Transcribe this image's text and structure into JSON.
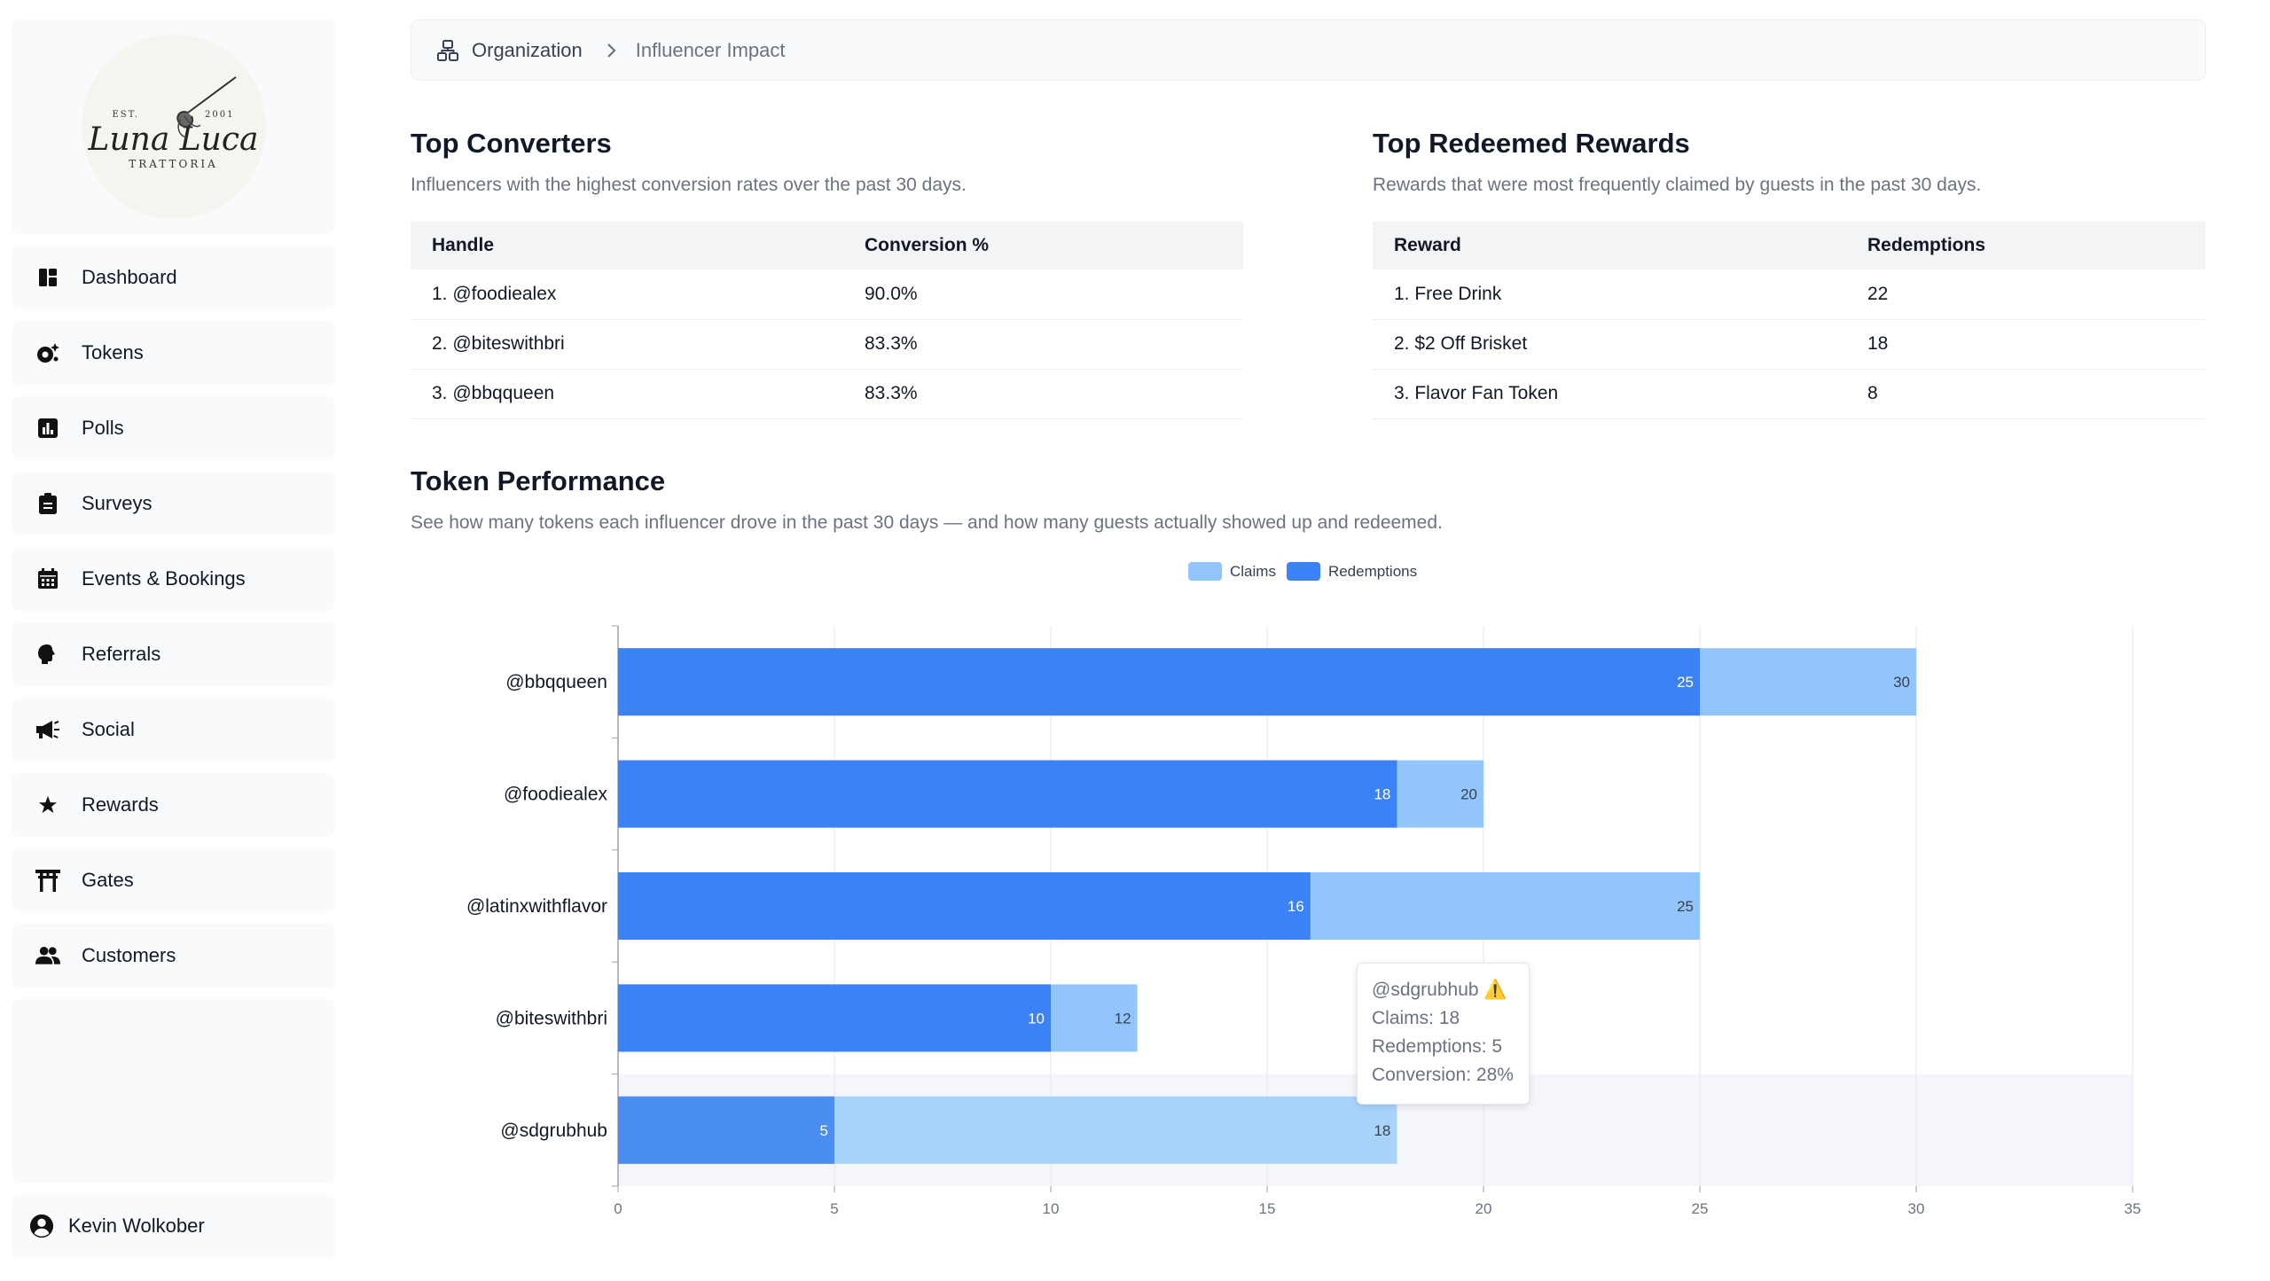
{
  "brand": {
    "est": "EST.",
    "year": "2001",
    "name": "Luna Luca",
    "tagline": "TRATTORIA"
  },
  "sidebar": {
    "items": [
      {
        "label": "Dashboard",
        "icon": "dashboard-icon"
      },
      {
        "label": "Tokens",
        "icon": "tokens-icon"
      },
      {
        "label": "Polls",
        "icon": "poll-icon"
      },
      {
        "label": "Surveys",
        "icon": "clipboard-icon"
      },
      {
        "label": "Events & Bookings",
        "icon": "calendar-icon"
      },
      {
        "label": "Referrals",
        "icon": "referral-icon"
      },
      {
        "label": "Social",
        "icon": "megaphone-icon"
      },
      {
        "label": "Rewards",
        "icon": "star-icon"
      },
      {
        "label": "Gates",
        "icon": "torii-gate-icon"
      },
      {
        "label": "Customers",
        "icon": "people-icon"
      }
    ],
    "user": {
      "name": "Kevin Wolkober",
      "icon": "account-circle-icon"
    }
  },
  "breadcrumb": {
    "root": "Organization",
    "current": "Influencer Impact"
  },
  "top_converters": {
    "title": "Top Converters",
    "subtitle": "Influencers with the highest conversion rates over the past 30 days.",
    "headers": [
      "Handle",
      "Conversion %"
    ],
    "rows": [
      [
        "1. @foodiealex",
        "90.0%"
      ],
      [
        "2. @biteswithbri",
        "83.3%"
      ],
      [
        "3. @bbqqueen",
        "83.3%"
      ]
    ]
  },
  "top_rewards": {
    "title": "Top Redeemed Rewards",
    "subtitle": "Rewards that were most frequently claimed by guests in the past 30 days.",
    "headers": [
      "Reward",
      "Redemptions"
    ],
    "rows": [
      [
        "1. Free Drink",
        "22"
      ],
      [
        "2. $2 Off Brisket",
        "18"
      ],
      [
        "3. Flavor Fan Token",
        "8"
      ]
    ]
  },
  "token_performance": {
    "title": "Token Performance",
    "subtitle": "See how many tokens each influencer drove in the past 30 days — and how many guests actually showed up and redeemed."
  },
  "colors": {
    "claims": "#93c5fd",
    "redemptions": "#3b82f6",
    "claims_highlight": "#a9d3fb",
    "redemptions_highlight": "#4a8ef0"
  },
  "chart_data": {
    "type": "bar",
    "orientation": "horizontal",
    "categories": [
      "@bbqqueen",
      "@foodiealex",
      "@latinxwithflavor",
      "@biteswithbri",
      "@sdgrubhub"
    ],
    "series": [
      {
        "name": "Claims",
        "values": [
          30,
          20,
          25,
          12,
          18
        ]
      },
      {
        "name": "Redemptions",
        "values": [
          25,
          18,
          16,
          10,
          5
        ]
      }
    ],
    "xlim": [
      0,
      35
    ],
    "xticks": [
      0,
      5,
      10,
      15,
      20,
      25,
      30,
      35
    ],
    "grid": true,
    "legend": "top-center",
    "highlighted": "@sdgrubhub"
  },
  "tooltip": {
    "handle": "@sdgrubhub",
    "warning": "⚠️",
    "claims": "Claims: 18",
    "redemptions": "Redemptions: 5",
    "conversion": "Conversion: 28%"
  }
}
